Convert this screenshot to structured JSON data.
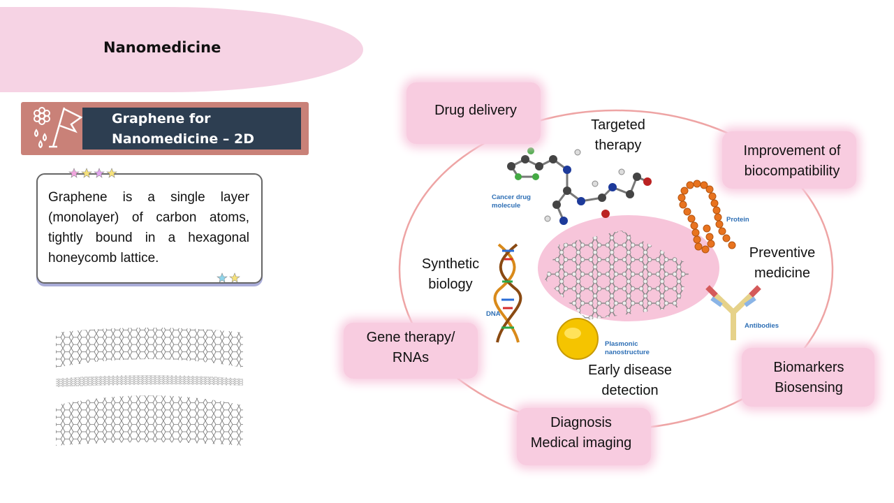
{
  "slide": {
    "title": "Nanomedicine",
    "banner": {
      "line1": "Graphene for",
      "line2": "Nanomedicine – 2D"
    },
    "description": "Graphene is a single layer (monolayer) of carbon atoms, tightly bound in a hexagonal honeycomb lattice."
  },
  "diagram": {
    "boxes": {
      "drug_delivery": "Drug delivery",
      "improvement_1": "Improvement of",
      "improvement_2": "biocompatibility",
      "gene_1": "Gene therapy/",
      "gene_2": "RNAs",
      "biomarkers_1": "Biomarkers",
      "biomarkers_2": "Biosensing",
      "diagnosis_1": "Diagnosis",
      "diagnosis_2": "Medical imaging"
    },
    "labels": {
      "targeted_1": "Targeted",
      "targeted_2": "therapy",
      "synthetic_1": "Synthetic",
      "synthetic_2": "biology",
      "preventive_1": "Preventive",
      "preventive_2": "medicine",
      "early_1": "Early disease",
      "early_2": "detection"
    },
    "small_labels": {
      "cancer_1": "Cancer drug",
      "cancer_2": "molecule",
      "protein": "Protein",
      "dna": "DNA",
      "antibodies": "Antibodies",
      "plasmonic_1": "Plasmonic",
      "plasmonic_2": "nanostructure"
    }
  },
  "colors": {
    "title_blob": "#f6d3e4",
    "banner_outer": "#c98178",
    "banner_inner": "#2d3e51",
    "ring": "#eea4a4",
    "center_ellipse": "#f7c5da",
    "label_blue": "#2e6fb5"
  },
  "icons": [
    "flower-icon",
    "flag-icon",
    "droplet-icon"
  ]
}
